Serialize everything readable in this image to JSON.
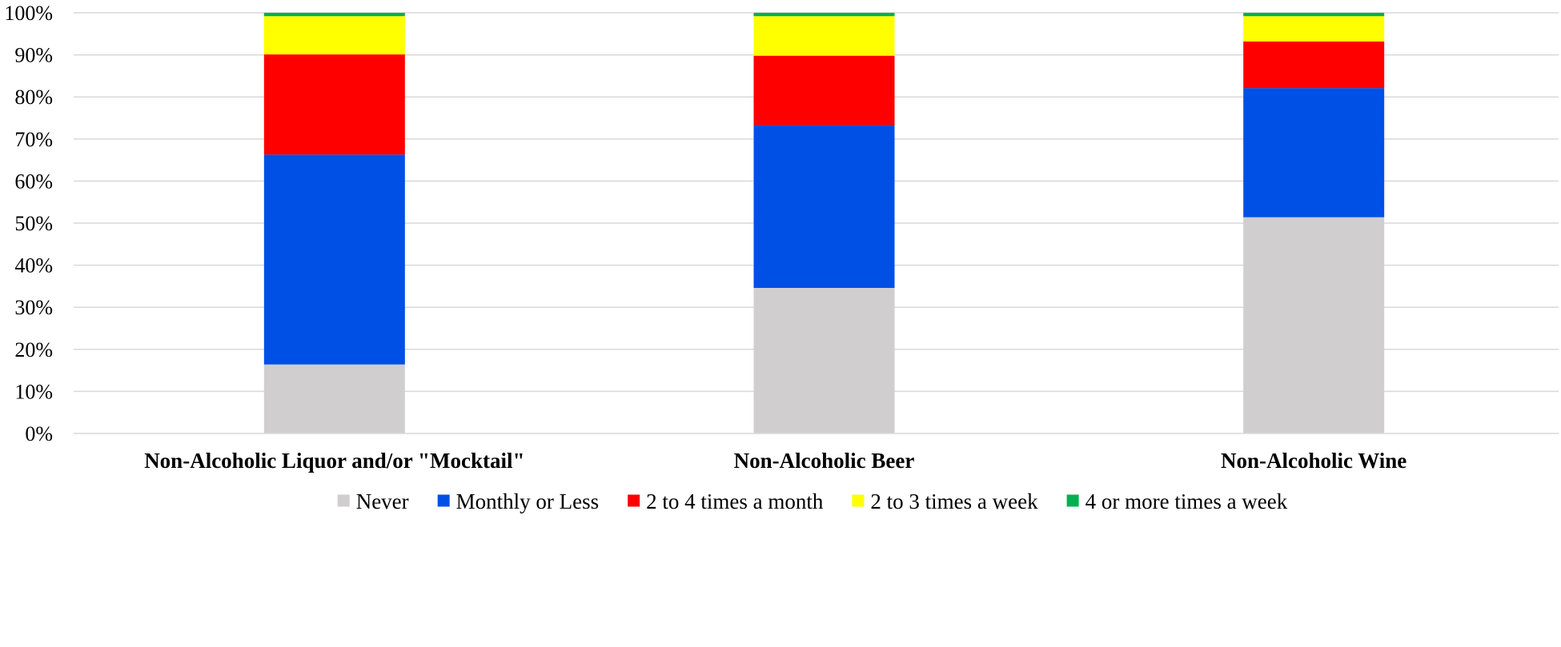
{
  "chart_data": {
    "type": "bar",
    "stacked": true,
    "title": "",
    "xlabel": "",
    "ylabel": "",
    "ylim": [
      0,
      100
    ],
    "y_tick_values": [
      0,
      10,
      20,
      30,
      40,
      50,
      60,
      70,
      80,
      90,
      100
    ],
    "y_tick_labels": [
      "0%",
      "10%",
      "20%",
      "30%",
      "40%",
      "50%",
      "60%",
      "70%",
      "80%",
      "90%",
      "100%"
    ],
    "grid": true,
    "legend_position": "bottom",
    "categories": [
      "Non-Alcoholic Liquor and/or \"Mocktail\"",
      "Non-Alcoholic Beer",
      "Non-Alcoholic Wine"
    ],
    "series": [
      {
        "name": "Never",
        "color": "#D0CECF",
        "values": [
          16.4,
          34.6,
          51.4
        ]
      },
      {
        "name": "Monthly or Less",
        "color": "#0050E6",
        "values": [
          49.9,
          38.7,
          30.7
        ]
      },
      {
        "name": "2 to 4 times a month",
        "color": "#FF0000",
        "values": [
          23.8,
          16.5,
          11.1
        ]
      },
      {
        "name": "2 to 3 times a week",
        "color": "#FFFF00",
        "values": [
          9.1,
          9.4,
          6.0
        ]
      },
      {
        "name": "4 or more times a week",
        "color": "#00B050",
        "values": [
          0.8,
          0.8,
          0.8
        ]
      }
    ]
  }
}
